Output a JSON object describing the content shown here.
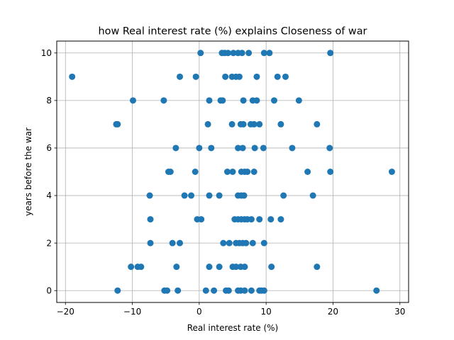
{
  "chart_data": {
    "type": "scatter",
    "title": "how Real interest rate (%) explains Closeness of war",
    "xlabel": "Real interest rate (%)",
    "ylabel": "years before the war",
    "xlim": [
      -21.3,
      31.3
    ],
    "ylim": [
      -0.5,
      10.5
    ],
    "x_ticks": [
      -20,
      -10,
      0,
      10,
      20,
      30
    ],
    "y_ticks": [
      0,
      2,
      4,
      6,
      8,
      10
    ],
    "grid": true,
    "marker_color": "#1f77b4",
    "points": [
      [
        -12.2,
        0
      ],
      [
        -5.2,
        0
      ],
      [
        -4.8,
        0
      ],
      [
        -3.2,
        0
      ],
      [
        1.0,
        0
      ],
      [
        2.2,
        0
      ],
      [
        4.0,
        0
      ],
      [
        4.4,
        0
      ],
      [
        5.8,
        0
      ],
      [
        6.2,
        0
      ],
      [
        6.8,
        0
      ],
      [
        7.8,
        0
      ],
      [
        9.0,
        0
      ],
      [
        9.3,
        0
      ],
      [
        9.7,
        0
      ],
      [
        26.5,
        0
      ],
      [
        -10.2,
        1
      ],
      [
        -9.2,
        1
      ],
      [
        -8.7,
        1
      ],
      [
        -3.4,
        1
      ],
      [
        1.5,
        1
      ],
      [
        3.0,
        1
      ],
      [
        5.0,
        1
      ],
      [
        5.5,
        1
      ],
      [
        6.2,
        1
      ],
      [
        6.8,
        1
      ],
      [
        10.8,
        1
      ],
      [
        17.6,
        1
      ],
      [
        -7.3,
        2
      ],
      [
        -4.0,
        2
      ],
      [
        -2.9,
        2
      ],
      [
        3.6,
        2
      ],
      [
        4.5,
        2
      ],
      [
        5.5,
        2
      ],
      [
        6.0,
        2
      ],
      [
        6.5,
        2
      ],
      [
        7.0,
        2
      ],
      [
        8.0,
        2
      ],
      [
        9.7,
        2
      ],
      [
        -7.3,
        3
      ],
      [
        -0.3,
        3
      ],
      [
        0.3,
        3
      ],
      [
        5.3,
        3
      ],
      [
        5.8,
        3
      ],
      [
        6.3,
        3
      ],
      [
        6.8,
        3
      ],
      [
        7.2,
        3
      ],
      [
        7.8,
        3
      ],
      [
        9.0,
        3
      ],
      [
        10.7,
        3
      ],
      [
        12.2,
        3
      ],
      [
        -7.4,
        4
      ],
      [
        -2.2,
        4
      ],
      [
        -1.2,
        4
      ],
      [
        1.5,
        4
      ],
      [
        3.0,
        4
      ],
      [
        5.8,
        4
      ],
      [
        6.3,
        4
      ],
      [
        6.7,
        4
      ],
      [
        12.6,
        4
      ],
      [
        17.0,
        4
      ],
      [
        -4.6,
        5
      ],
      [
        -4.3,
        5
      ],
      [
        -0.6,
        5
      ],
      [
        4.2,
        5
      ],
      [
        5.0,
        5
      ],
      [
        6.3,
        5
      ],
      [
        6.8,
        5
      ],
      [
        7.2,
        5
      ],
      [
        8.2,
        5
      ],
      [
        16.2,
        5
      ],
      [
        19.6,
        5
      ],
      [
        28.8,
        5
      ],
      [
        -3.5,
        6
      ],
      [
        0.0,
        6
      ],
      [
        1.8,
        6
      ],
      [
        5.8,
        6
      ],
      [
        6.5,
        6
      ],
      [
        8.3,
        6
      ],
      [
        9.6,
        6
      ],
      [
        13.9,
        6
      ],
      [
        19.5,
        6
      ],
      [
        -12.4,
        7
      ],
      [
        -12.2,
        7
      ],
      [
        1.3,
        7
      ],
      [
        4.9,
        7
      ],
      [
        6.2,
        7
      ],
      [
        6.6,
        7
      ],
      [
        7.7,
        7
      ],
      [
        8.2,
        7
      ],
      [
        9.0,
        7
      ],
      [
        12.2,
        7
      ],
      [
        17.6,
        7
      ],
      [
        -9.9,
        8
      ],
      [
        -5.3,
        8
      ],
      [
        1.5,
        8
      ],
      [
        3.2,
        8
      ],
      [
        3.5,
        8
      ],
      [
        6.6,
        8
      ],
      [
        8.0,
        8
      ],
      [
        8.6,
        8
      ],
      [
        11.2,
        8
      ],
      [
        14.9,
        8
      ],
      [
        -19.0,
        9
      ],
      [
        -2.9,
        9
      ],
      [
        -0.5,
        9
      ],
      [
        3.9,
        9
      ],
      [
        4.9,
        9
      ],
      [
        5.5,
        9
      ],
      [
        6.0,
        9
      ],
      [
        8.6,
        9
      ],
      [
        11.7,
        9
      ],
      [
        12.9,
        9
      ],
      [
        0.2,
        10
      ],
      [
        3.4,
        10
      ],
      [
        3.8,
        10
      ],
      [
        4.3,
        10
      ],
      [
        5.1,
        10
      ],
      [
        5.8,
        10
      ],
      [
        6.4,
        10
      ],
      [
        7.4,
        10
      ],
      [
        9.7,
        10
      ],
      [
        10.5,
        10
      ],
      [
        19.6,
        10
      ]
    ]
  }
}
